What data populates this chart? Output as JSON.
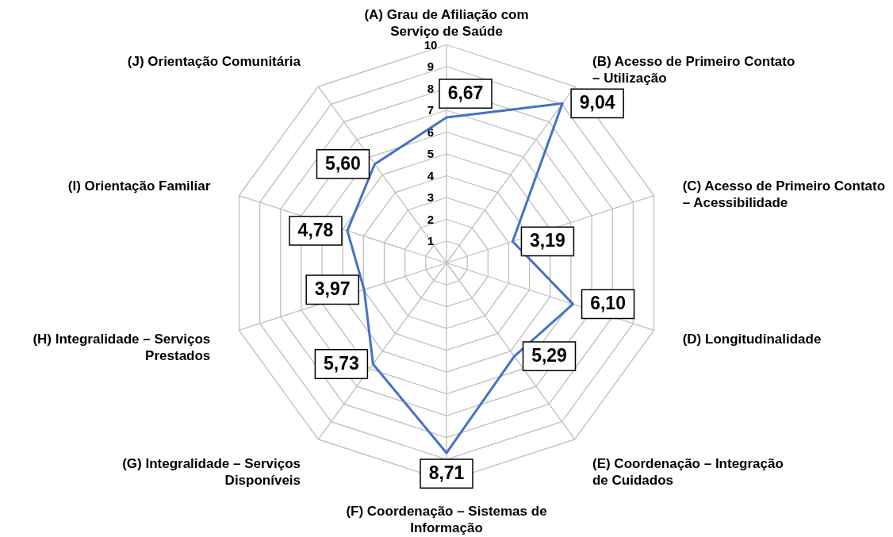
{
  "chart_data": {
    "type": "radar",
    "categories": [
      "(A) Grau de Afiliação com Serviço de Saúde",
      "(B) Acesso de Primeiro Contato – Utilização",
      "(C) Acesso de Primeiro Contato – Acessibilidade",
      "(D) Longitudinalidade",
      "(E) Coordenação – Integração de Cuidados",
      "(F) Coordenação – Sistemas de Informação",
      "(G) Integralidade – Serviços Disponíveis",
      "(H) Integralidade – Serviços Prestados",
      "(I) Orientação Familiar",
      "(J) Orientação Comunitária"
    ],
    "series": [
      {
        "color": "#4472c4",
        "values": [
          6.67,
          9.04,
          3.19,
          6.1,
          5.29,
          8.71,
          5.73,
          3.97,
          4.78,
          5.6
        ],
        "value_labels": [
          "6,67",
          "9,04",
          "3,19",
          "6,10",
          "5,29",
          "8,71",
          "5,73",
          "3,97",
          "4,78",
          "5,60"
        ]
      }
    ],
    "ylim": [
      0,
      10
    ],
    "yticks": [
      1,
      2,
      3,
      4,
      5,
      6,
      7,
      8,
      9,
      10
    ],
    "grid": true,
    "marker": "none",
    "line_style": "solid"
  }
}
